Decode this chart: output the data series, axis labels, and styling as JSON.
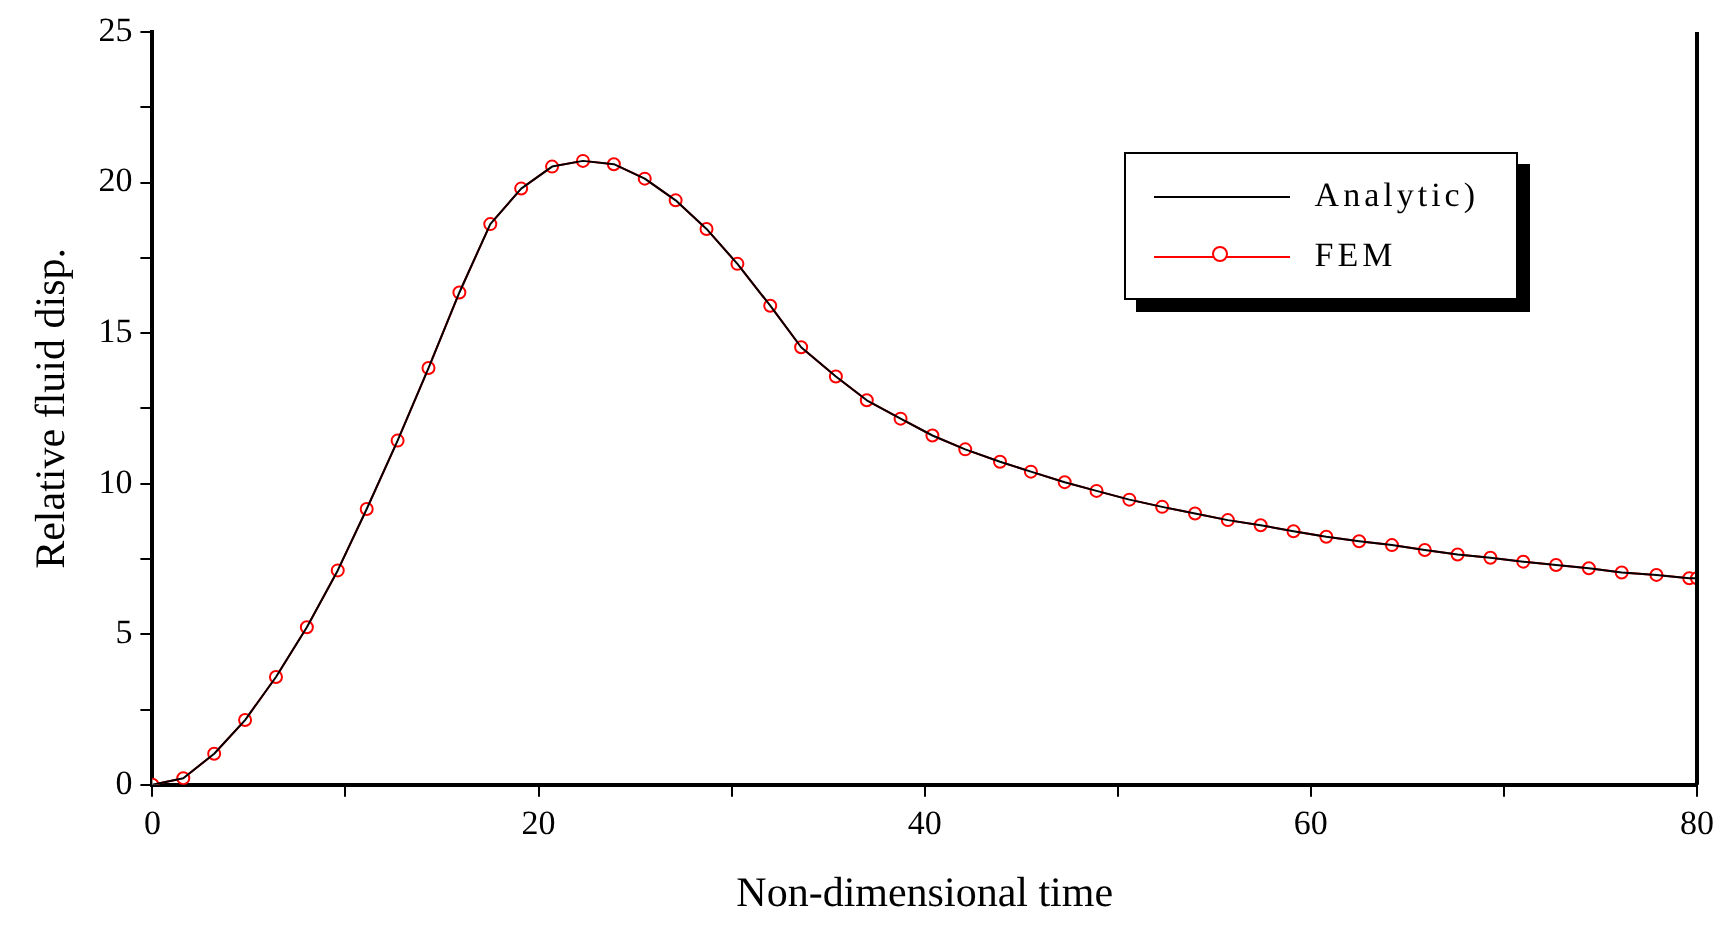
{
  "chart_data": {
    "type": "line",
    "xlabel": "Non-dimensional time",
    "ylabel": "Relative fluid disp.",
    "x": [
      0,
      1.6,
      3.2,
      4.8,
      6.4,
      8.0,
      9.6,
      11.1,
      12.7,
      14.3,
      15.9,
      17.5,
      19.1,
      20.7,
      22.3,
      23.9,
      25.5,
      27.1,
      28.7,
      30.3,
      32.0,
      33.6,
      35.4,
      37.0,
      38.75,
      40.4,
      42.1,
      43.9,
      45.5,
      47.25,
      48.9,
      50.6,
      52.3,
      54.0,
      55.7,
      57.4,
      59.1,
      60.8,
      62.5,
      64.2,
      65.9,
      67.6,
      69.3,
      71.0,
      72.7,
      74.4,
      76.1,
      77.9,
      79.6,
      80
    ],
    "series": [
      {
        "name": "Analytic)",
        "color": "#000000",
        "marker": "none",
        "values": [
          0,
          0.22,
          1.03,
          2.15,
          3.58,
          5.23,
          7.12,
          9.16,
          11.43,
          13.84,
          16.35,
          18.62,
          19.8,
          20.53,
          20.72,
          20.61,
          20.13,
          19.41,
          18.46,
          17.3,
          15.91,
          14.53,
          13.56,
          12.77,
          12.16,
          11.6,
          11.14,
          10.73,
          10.4,
          10.05,
          9.76,
          9.47,
          9.23,
          9.01,
          8.79,
          8.62,
          8.42,
          8.24,
          8.09,
          7.96,
          7.8,
          7.65,
          7.54,
          7.41,
          7.3,
          7.19,
          7.05,
          6.97,
          6.86,
          6.86
        ]
      },
      {
        "name": "FEM",
        "color": "#ff0000",
        "marker": "circle",
        "values": [
          0,
          0.22,
          1.03,
          2.15,
          3.58,
          5.23,
          7.12,
          9.16,
          11.43,
          13.84,
          16.35,
          18.62,
          19.8,
          20.53,
          20.72,
          20.61,
          20.13,
          19.41,
          18.46,
          17.3,
          15.91,
          14.53,
          13.56,
          12.77,
          12.16,
          11.6,
          11.14,
          10.73,
          10.4,
          10.05,
          9.76,
          9.47,
          9.23,
          9.01,
          8.79,
          8.62,
          8.42,
          8.24,
          8.09,
          7.96,
          7.8,
          7.65,
          7.54,
          7.41,
          7.3,
          7.19,
          7.05,
          6.97,
          6.86,
          6.86
        ]
      }
    ],
    "xlim": [
      0,
      80
    ],
    "xticks": [
      0,
      {
        "value": 10,
        "label": null
      },
      20,
      {
        "value": 30,
        "label": null
      },
      40,
      {
        "value": 50,
        "label": null
      },
      60,
      {
        "value": 70,
        "label": null
      },
      80
    ],
    "ylim": [
      0,
      25
    ],
    "yticks": [
      0,
      {
        "value": 2.5,
        "label": null
      },
      5,
      {
        "value": 7.5,
        "label": null
      },
      10,
      {
        "value": 12.5,
        "label": null
      },
      15,
      {
        "value": 17.5,
        "label": null
      },
      20,
      {
        "value": 22.5,
        "label": null
      },
      25
    ],
    "grid": false,
    "legend": "top right",
    "line_style": "solid"
  }
}
